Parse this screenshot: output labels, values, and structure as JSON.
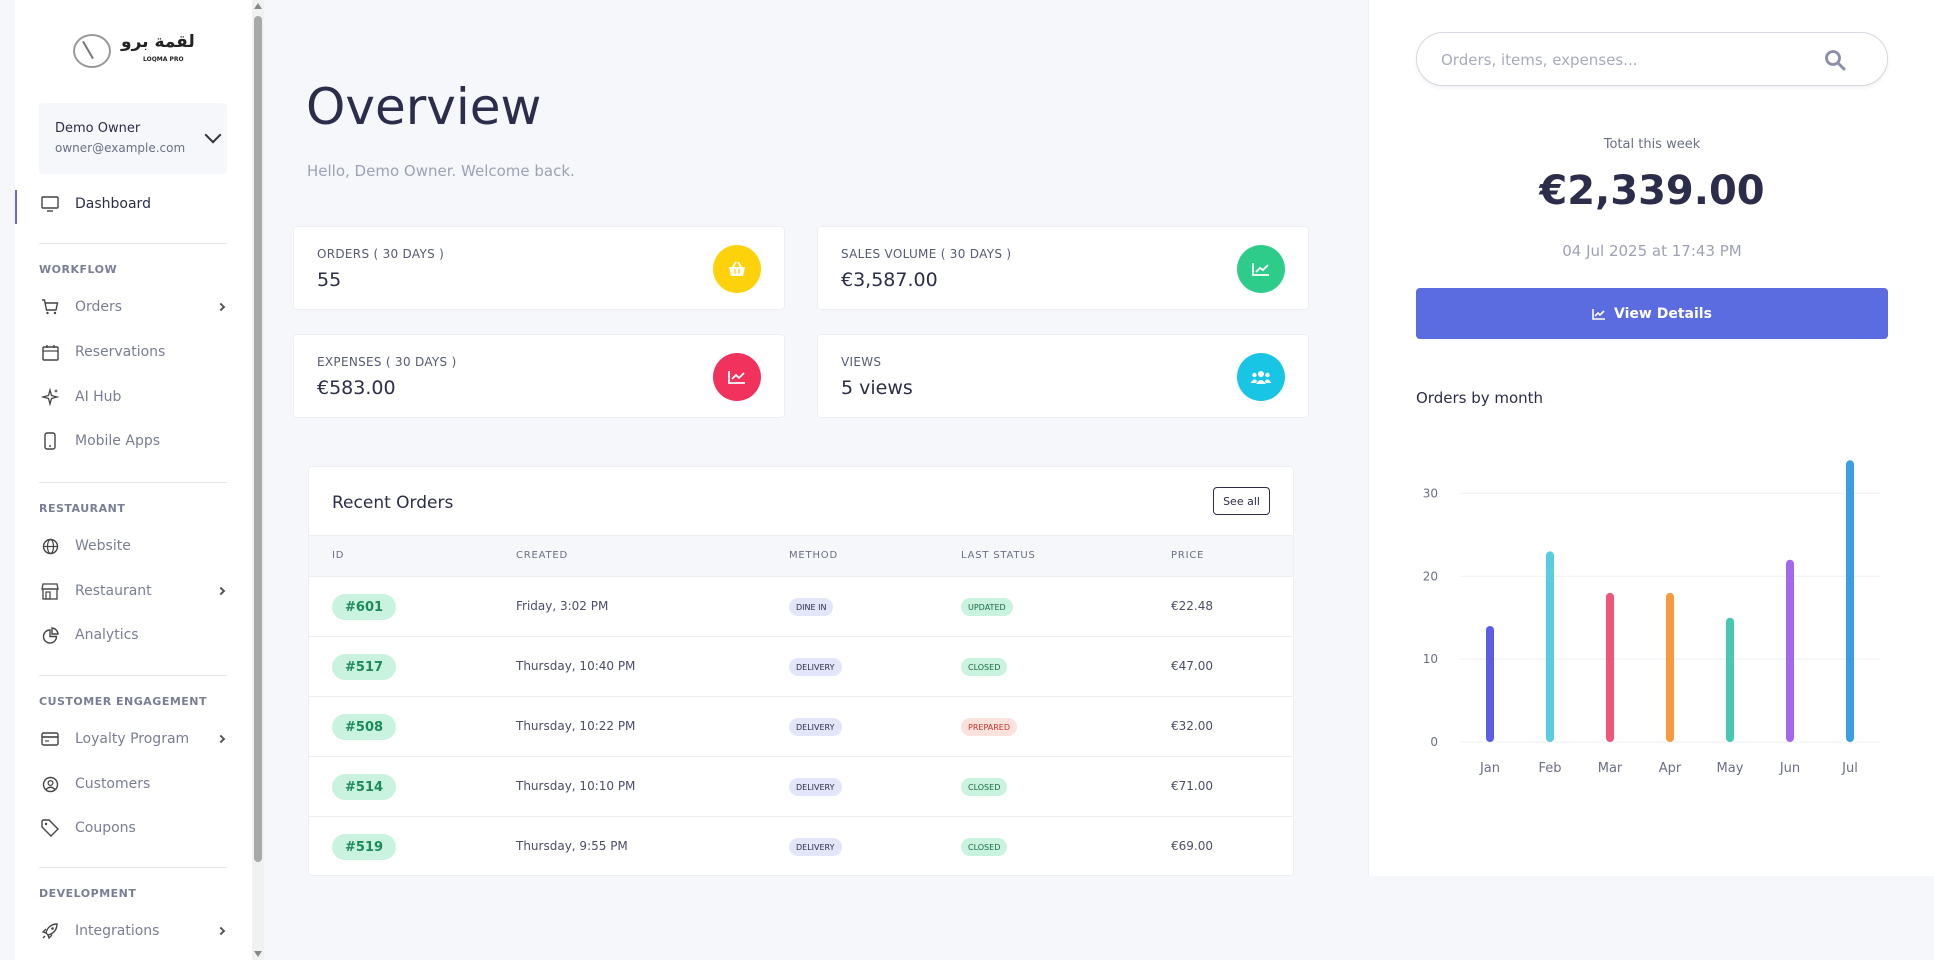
{
  "sidebar": {
    "logo": {
      "arabic": "لقمة برو",
      "english": "LOQMA PRO"
    },
    "user": {
      "name": "Demo Owner",
      "email": "owner@example.com"
    },
    "dashboard_label": "Dashboard",
    "sections": [
      {
        "heading": "WORKFLOW",
        "items": [
          {
            "label": "Orders",
            "icon": "cart-icon",
            "arrow": true
          },
          {
            "label": "Reservations",
            "icon": "calendar-icon",
            "arrow": false
          },
          {
            "label": "AI Hub",
            "icon": "sparkle-icon",
            "arrow": false
          },
          {
            "label": "Mobile Apps",
            "icon": "phone-icon",
            "arrow": false
          }
        ]
      },
      {
        "heading": "RESTAURANT",
        "items": [
          {
            "label": "Website",
            "icon": "globe-icon",
            "arrow": false
          },
          {
            "label": "Restaurant",
            "icon": "store-icon",
            "arrow": true
          },
          {
            "label": "Analytics",
            "icon": "pie-chart-icon",
            "arrow": false
          }
        ]
      },
      {
        "heading": "CUSTOMER ENGAGEMENT",
        "items": [
          {
            "label": "Loyalty Program",
            "icon": "card-icon",
            "arrow": true
          },
          {
            "label": "Customers",
            "icon": "user-circle-icon",
            "arrow": false
          },
          {
            "label": "Coupons",
            "icon": "tag-icon",
            "arrow": false
          }
        ]
      },
      {
        "heading": "DEVELOPMENT",
        "items": [
          {
            "label": "Integrations",
            "icon": "rocket-icon",
            "arrow": true
          }
        ]
      }
    ]
  },
  "main": {
    "title": "Overview",
    "subtitle": "Hello, Demo Owner. Welcome back.",
    "stats": [
      {
        "label": "ORDERS ( 30 DAYS )",
        "value": "55",
        "color": "#fdd20a",
        "icon": "basket-icon"
      },
      {
        "label": "SALES VOLUME ( 30 DAYS )",
        "value": "€3,587.00",
        "color": "#2ecc8a",
        "icon": "chart-up-icon"
      },
      {
        "label": "EXPENSES ( 30 DAYS )",
        "value": "€583.00",
        "color": "#f0325c",
        "icon": "chart-line-icon"
      },
      {
        "label": "VIEWS",
        "value": "5 views",
        "color": "#18c5e5",
        "icon": "users-icon"
      }
    ],
    "recent_orders": {
      "title": "Recent Orders",
      "see_all": "See all",
      "columns": [
        "ID",
        "CREATED",
        "METHOD",
        "LAST STATUS",
        "PRICE"
      ],
      "rows": [
        {
          "id": "#601",
          "created": "Friday, 3:02 PM",
          "method": "DINE IN",
          "status": "UPDATED",
          "status_color": "green",
          "price": "€22.48"
        },
        {
          "id": "#517",
          "created": "Thursday, 10:40 PM",
          "method": "DELIVERY",
          "status": "CLOSED",
          "status_color": "green",
          "price": "€47.00"
        },
        {
          "id": "#508",
          "created": "Thursday, 10:22 PM",
          "method": "DELIVERY",
          "status": "PREPARED",
          "status_color": "red",
          "price": "€32.00"
        },
        {
          "id": "#514",
          "created": "Thursday, 10:10 PM",
          "method": "DELIVERY",
          "status": "CLOSED",
          "status_color": "green",
          "price": "€71.00"
        },
        {
          "id": "#519",
          "created": "Thursday, 9:55 PM",
          "method": "DELIVERY",
          "status": "CLOSED",
          "status_color": "green",
          "price": "€69.00"
        }
      ]
    }
  },
  "right_panel": {
    "search_placeholder": "Orders, items, expenses...",
    "total_label": "Total this week",
    "total_value": "€2,339.00",
    "total_date": "04 Jul 2025 at 17:43 PM",
    "view_details": "View Details",
    "chart_title": "Orders by month"
  },
  "chart_data": {
    "type": "bar",
    "title": "Orders by month",
    "categories": [
      "Jan",
      "Feb",
      "Mar",
      "Apr",
      "May",
      "Jun",
      "Jul"
    ],
    "values": [
      14,
      23,
      18,
      18,
      15,
      22,
      34
    ],
    "colors": [
      "#5b5ee0",
      "#5bcbe0",
      "#f0557a",
      "#f79a3e",
      "#4ac7b0",
      "#a668ea",
      "#3a9ee0"
    ],
    "yticks": [
      0,
      10,
      20,
      30
    ],
    "ylim": [
      0,
      35
    ],
    "grid": true
  }
}
